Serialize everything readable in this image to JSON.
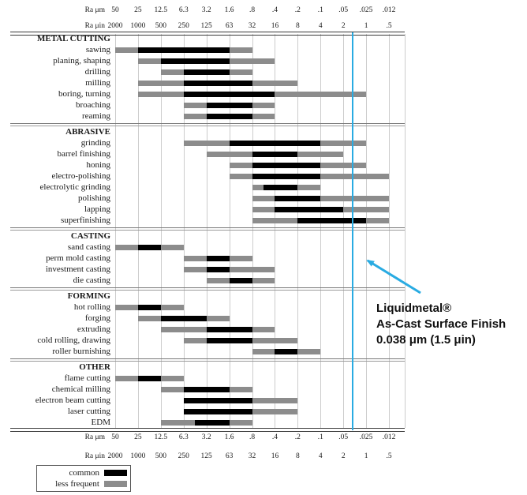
{
  "chart_data": {
    "type": "bar",
    "description": "Surface roughness (Ra) ranges produced by manufacturing processes; horizontal range bars on a log scale, common vs less frequent",
    "axis": {
      "um_label": "Ra μm",
      "uin_label": "Ra μin",
      "um_values": [
        "50",
        "25",
        "12.5",
        "6.3",
        "3.2",
        "1.6",
        ".8",
        ".4",
        ".2",
        ".1",
        ".05",
        ".025",
        ".012"
      ],
      "uin_values": [
        "2000",
        "1000",
        "500",
        "250",
        "125",
        "63",
        "32",
        "16",
        "8",
        "4",
        "2",
        "1",
        ".5"
      ],
      "scale": "log2-descending",
      "shown_top_and_bottom": true,
      "grid": "on"
    },
    "legend": [
      {
        "key": "common",
        "label": "common",
        "color": "#000000"
      },
      {
        "key": "less_frequent",
        "label": "less frequent",
        "color": "#8C8C8C"
      }
    ],
    "marker": {
      "value_um": 0.038,
      "color": "#29ABE2"
    },
    "sections": [
      {
        "title": "METAL CUTTING",
        "rows": [
          {
            "label": "sawing",
            "segments": [
              {
                "type": "less_frequent",
                "from_um": 50,
                "to_um": 25
              },
              {
                "type": "common",
                "from_um": 25,
                "to_um": 1.6
              },
              {
                "type": "less_frequent",
                "from_um": 1.6,
                "to_um": 0.8
              }
            ]
          },
          {
            "label": "planing, shaping",
            "segments": [
              {
                "type": "less_frequent",
                "from_um": 25,
                "to_um": 12.5
              },
              {
                "type": "common",
                "from_um": 12.5,
                "to_um": 1.6
              },
              {
                "type": "less_frequent",
                "from_um": 1.6,
                "to_um": 0.4
              }
            ]
          },
          {
            "label": "drilling",
            "segments": [
              {
                "type": "less_frequent",
                "from_um": 12.5,
                "to_um": 6.3
              },
              {
                "type": "common",
                "from_um": 6.3,
                "to_um": 1.6
              },
              {
                "type": "less_frequent",
                "from_um": 1.6,
                "to_um": 0.8
              }
            ]
          },
          {
            "label": "milling",
            "segments": [
              {
                "type": "less_frequent",
                "from_um": 25,
                "to_um": 6.3
              },
              {
                "type": "common",
                "from_um": 6.3,
                "to_um": 0.8
              },
              {
                "type": "less_frequent",
                "from_um": 0.8,
                "to_um": 0.2
              }
            ]
          },
          {
            "label": "boring, turning",
            "segments": [
              {
                "type": "less_frequent",
                "from_um": 25,
                "to_um": 6.3
              },
              {
                "type": "common",
                "from_um": 6.3,
                "to_um": 0.4
              },
              {
                "type": "less_frequent",
                "from_um": 0.4,
                "to_um": 0.025
              }
            ]
          },
          {
            "label": "broaching",
            "segments": [
              {
                "type": "less_frequent",
                "from_um": 6.3,
                "to_um": 3.2
              },
              {
                "type": "common",
                "from_um": 3.2,
                "to_um": 0.8
              },
              {
                "type": "less_frequent",
                "from_um": 0.8,
                "to_um": 0.4
              }
            ]
          },
          {
            "label": "reaming",
            "segments": [
              {
                "type": "less_frequent",
                "from_um": 6.3,
                "to_um": 3.2
              },
              {
                "type": "common",
                "from_um": 3.2,
                "to_um": 0.8
              },
              {
                "type": "less_frequent",
                "from_um": 0.8,
                "to_um": 0.4
              }
            ]
          }
        ]
      },
      {
        "title": "ABRASIVE",
        "rows": [
          {
            "label": "grinding",
            "segments": [
              {
                "type": "less_frequent",
                "from_um": 6.3,
                "to_um": 1.6
              },
              {
                "type": "common",
                "from_um": 1.6,
                "to_um": 0.1
              },
              {
                "type": "less_frequent",
                "from_um": 0.1,
                "to_um": 0.025
              }
            ]
          },
          {
            "label": "barrel finishing",
            "segments": [
              {
                "type": "less_frequent",
                "from_um": 3.2,
                "to_um": 0.8
              },
              {
                "type": "common",
                "from_um": 0.8,
                "to_um": 0.2
              },
              {
                "type": "less_frequent",
                "from_um": 0.2,
                "to_um": 0.05
              }
            ]
          },
          {
            "label": "honing",
            "segments": [
              {
                "type": "less_frequent",
                "from_um": 1.6,
                "to_um": 0.8
              },
              {
                "type": "common",
                "from_um": 0.8,
                "to_um": 0.1
              },
              {
                "type": "less_frequent",
                "from_um": 0.1,
                "to_um": 0.025
              }
            ]
          },
          {
            "label": "electro-polishing",
            "segments": [
              {
                "type": "less_frequent",
                "from_um": 1.6,
                "to_um": 0.8
              },
              {
                "type": "common",
                "from_um": 0.8,
                "to_um": 0.1
              },
              {
                "type": "less_frequent",
                "from_um": 0.1,
                "to_um": 0.012
              }
            ]
          },
          {
            "label": "electrolytic grinding",
            "segments": [
              {
                "type": "less_frequent",
                "from_um": 0.8,
                "to_um": 0.57
              },
              {
                "type": "common",
                "from_um": 0.57,
                "to_um": 0.2
              },
              {
                "type": "less_frequent",
                "from_um": 0.2,
                "to_um": 0.1
              }
            ]
          },
          {
            "label": "polishing",
            "segments": [
              {
                "type": "less_frequent",
                "from_um": 0.8,
                "to_um": 0.4
              },
              {
                "type": "common",
                "from_um": 0.4,
                "to_um": 0.1
              },
              {
                "type": "less_frequent",
                "from_um": 0.1,
                "to_um": 0.012
              }
            ]
          },
          {
            "label": "lapping",
            "segments": [
              {
                "type": "less_frequent",
                "from_um": 0.8,
                "to_um": 0.4
              },
              {
                "type": "common",
                "from_um": 0.4,
                "to_um": 0.05
              },
              {
                "type": "less_frequent",
                "from_um": 0.05,
                "to_um": 0.012
              }
            ]
          },
          {
            "label": "superfinishing",
            "segments": [
              {
                "type": "less_frequent",
                "from_um": 0.8,
                "to_um": 0.2
              },
              {
                "type": "common",
                "from_um": 0.2,
                "to_um": 0.025
              },
              {
                "type": "less_frequent",
                "from_um": 0.025,
                "to_um": 0.012
              }
            ]
          }
        ]
      },
      {
        "title": "CASTING",
        "rows": [
          {
            "label": "sand casting",
            "segments": [
              {
                "type": "less_frequent",
                "from_um": 50,
                "to_um": 25
              },
              {
                "type": "common",
                "from_um": 25,
                "to_um": 12.5
              },
              {
                "type": "less_frequent",
                "from_um": 12.5,
                "to_um": 6.3
              }
            ]
          },
          {
            "label": "perm mold casting",
            "segments": [
              {
                "type": "less_frequent",
                "from_um": 6.3,
                "to_um": 3.2
              },
              {
                "type": "common",
                "from_um": 3.2,
                "to_um": 1.6
              },
              {
                "type": "less_frequent",
                "from_um": 1.6,
                "to_um": 0.8
              }
            ]
          },
          {
            "label": "investment casting",
            "segments": [
              {
                "type": "less_frequent",
                "from_um": 6.3,
                "to_um": 3.2
              },
              {
                "type": "common",
                "from_um": 3.2,
                "to_um": 1.6
              },
              {
                "type": "less_frequent",
                "from_um": 1.6,
                "to_um": 0.4
              }
            ]
          },
          {
            "label": "die casting",
            "segments": [
              {
                "type": "less_frequent",
                "from_um": 3.2,
                "to_um": 1.6
              },
              {
                "type": "common",
                "from_um": 1.6,
                "to_um": 0.8
              },
              {
                "type": "less_frequent",
                "from_um": 0.8,
                "to_um": 0.4
              }
            ]
          }
        ]
      },
      {
        "title": "FORMING",
        "rows": [
          {
            "label": "hot rolling",
            "segments": [
              {
                "type": "less_frequent",
                "from_um": 50,
                "to_um": 25
              },
              {
                "type": "common",
                "from_um": 25,
                "to_um": 12.5
              },
              {
                "type": "less_frequent",
                "from_um": 12.5,
                "to_um": 6.3
              }
            ]
          },
          {
            "label": "forging",
            "segments": [
              {
                "type": "less_frequent",
                "from_um": 25,
                "to_um": 12.5
              },
              {
                "type": "common",
                "from_um": 12.5,
                "to_um": 3.2
              },
              {
                "type": "less_frequent",
                "from_um": 3.2,
                "to_um": 1.6
              }
            ]
          },
          {
            "label": "extruding",
            "segments": [
              {
                "type": "less_frequent",
                "from_um": 12.5,
                "to_um": 3.2
              },
              {
                "type": "common",
                "from_um": 3.2,
                "to_um": 0.8
              },
              {
                "type": "less_frequent",
                "from_um": 0.8,
                "to_um": 0.4
              }
            ]
          },
          {
            "label": "cold rolling, drawing",
            "segments": [
              {
                "type": "less_frequent",
                "from_um": 6.3,
                "to_um": 3.2
              },
              {
                "type": "common",
                "from_um": 3.2,
                "to_um": 0.8
              },
              {
                "type": "less_frequent",
                "from_um": 0.8,
                "to_um": 0.2
              }
            ]
          },
          {
            "label": "roller burnishing",
            "segments": [
              {
                "type": "less_frequent",
                "from_um": 0.8,
                "to_um": 0.4
              },
              {
                "type": "common",
                "from_um": 0.4,
                "to_um": 0.2
              },
              {
                "type": "less_frequent",
                "from_um": 0.2,
                "to_um": 0.1
              }
            ]
          }
        ]
      },
      {
        "title": "OTHER",
        "rows": [
          {
            "label": "flame cutting",
            "segments": [
              {
                "type": "less_frequent",
                "from_um": 50,
                "to_um": 25
              },
              {
                "type": "common",
                "from_um": 25,
                "to_um": 12.5
              },
              {
                "type": "less_frequent",
                "from_um": 12.5,
                "to_um": 6.3
              }
            ]
          },
          {
            "label": "chemical milling",
            "segments": [
              {
                "type": "less_frequent",
                "from_um": 12.5,
                "to_um": 6.3
              },
              {
                "type": "common",
                "from_um": 6.3,
                "to_um": 1.6
              },
              {
                "type": "less_frequent",
                "from_um": 1.6,
                "to_um": 0.8
              }
            ]
          },
          {
            "label": "electron beam cutting",
            "segments": [
              {
                "type": "common",
                "from_um": 6.3,
                "to_um": 0.8
              },
              {
                "type": "less_frequent",
                "from_um": 0.8,
                "to_um": 0.2
              }
            ]
          },
          {
            "label": "laser cutting",
            "segments": [
              {
                "type": "common",
                "from_um": 6.3,
                "to_um": 0.8
              },
              {
                "type": "less_frequent",
                "from_um": 0.8,
                "to_um": 0.2
              }
            ]
          },
          {
            "label": "EDM",
            "segments": [
              {
                "type": "less_frequent",
                "from_um": 12.5,
                "to_um": 4.5
              },
              {
                "type": "common",
                "from_um": 4.5,
                "to_um": 1.6
              },
              {
                "type": "less_frequent",
                "from_um": 1.6,
                "to_um": 0.8
              }
            ]
          }
        ]
      }
    ]
  },
  "callout": {
    "line1": "Liquidmetal®",
    "line2": "As-Cast Surface Finish",
    "line3": "0.038 μm (1.5 μin)"
  }
}
